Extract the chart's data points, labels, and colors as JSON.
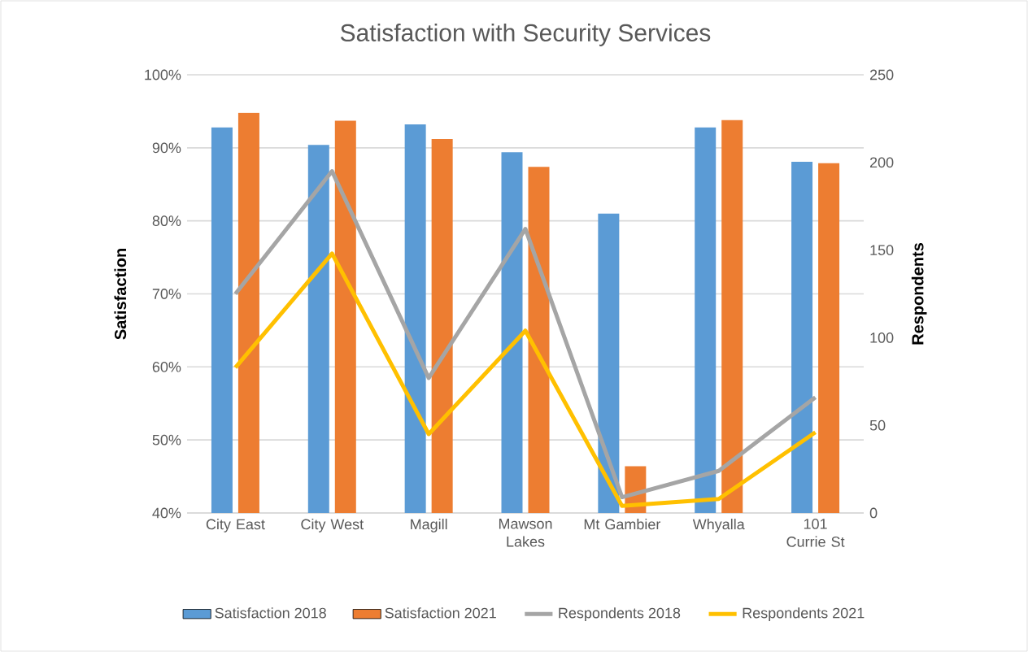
{
  "chart_data": {
    "type": "bar",
    "title": "Satisfaction with Security Services",
    "ylabel": "Satisfaction",
    "y2label": "Respondents",
    "categories": [
      "City East",
      "City West",
      "Magill",
      "Mawson Lakes",
      "Mt Gambier",
      "Whyalla",
      "101 Currie St"
    ],
    "series": [
      {
        "name": "Satisfaction 2018",
        "color": "#5b9bd5",
        "values": [
          92.8,
          90.4,
          93.2,
          89.4,
          81.0,
          92.8,
          88.1
        ]
      },
      {
        "name": "Satisfaction 2021",
        "color": "#ed7d31",
        "values": [
          94.8,
          93.7,
          91.2,
          87.4,
          46.4,
          93.8,
          87.9
        ]
      },
      {
        "name": "Respondents 2018",
        "type": "line",
        "axis": "y2",
        "color": "#a5a5a5",
        "values": [
          125,
          195,
          77,
          162,
          9,
          24,
          66
        ]
      },
      {
        "name": "Respondents 2021",
        "type": "line",
        "axis": "y2",
        "color": "#ffc000",
        "values": [
          83,
          148,
          45,
          104,
          4,
          8,
          46
        ]
      }
    ],
    "ylim": [
      40,
      100
    ],
    "yticks": [
      {
        "value": 40,
        "label": "40%"
      },
      {
        "value": 50,
        "label": "50%"
      },
      {
        "value": 60,
        "label": "60%"
      },
      {
        "value": 70,
        "label": "70%"
      },
      {
        "value": 80,
        "label": "80%"
      },
      {
        "value": 90,
        "label": "90%"
      },
      {
        "value": 100,
        "label": "100%"
      }
    ],
    "y2lim": [
      0,
      250
    ],
    "y2ticks": [
      0,
      50,
      100,
      150,
      200,
      250
    ],
    "grid": "y",
    "legend": "bottom",
    "marker": "none"
  }
}
